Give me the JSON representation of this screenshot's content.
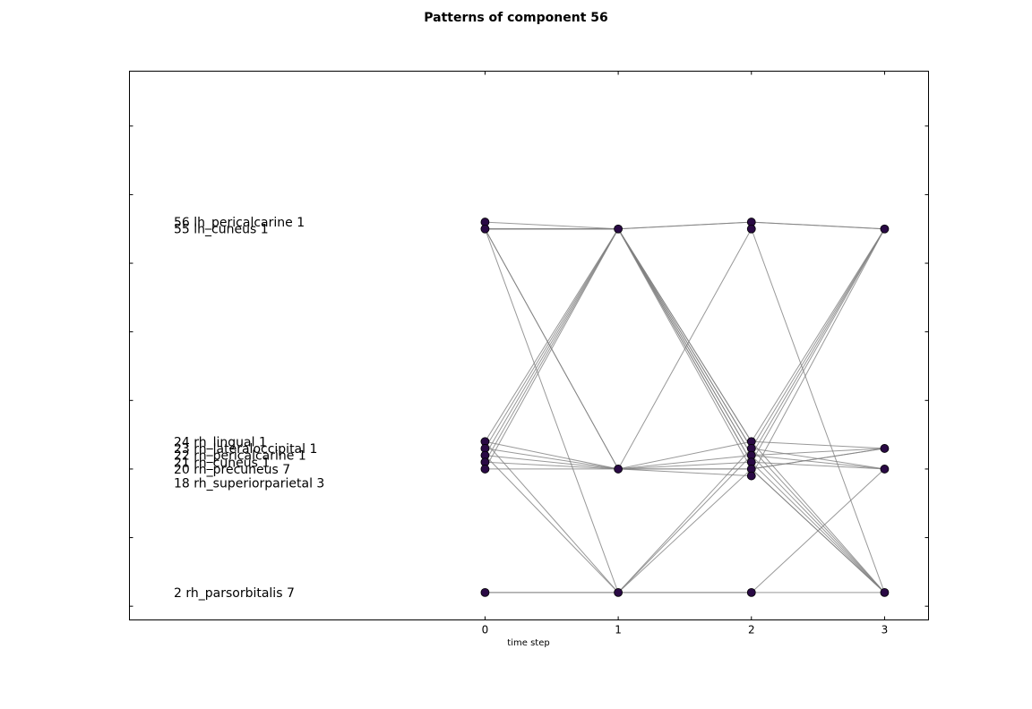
{
  "chart_data": {
    "type": "line",
    "title": "Patterns of component 56",
    "xlabel": "time step",
    "ylabel": "",
    "x_ticks": [
      "0",
      "1",
      "2",
      "3"
    ],
    "xlim": [
      -2.67,
      3.33
    ],
    "ylim": [
      -2,
      78
    ],
    "grid": false,
    "line_color": "#808080",
    "marker_color": "#2a0a45",
    "row_labels": [
      {
        "y": 56,
        "text": "56 lh_pericalcarine 1"
      },
      {
        "y": 55,
        "text": "55 lh_cuneus 1"
      },
      {
        "y": 24,
        "text": "24 rh_lingual 1"
      },
      {
        "y": 23,
        "text": "23 rh_lateraloccipital 1"
      },
      {
        "y": 22,
        "text": "22 rh_pericalcarine 1"
      },
      {
        "y": 21,
        "text": "21 rh_cuneus 1"
      },
      {
        "y": 20,
        "text": "20 rh_precuneus 7"
      },
      {
        "y": 18,
        "text": "18 rh_superiorparietal 3"
      },
      {
        "y": 2,
        "text": "2 rh_parsorbitalis 7"
      }
    ],
    "paths": [
      [
        56,
        55,
        56,
        55
      ],
      [
        55,
        20,
        55,
        2
      ],
      [
        24,
        55,
        24,
        23
      ],
      [
        23,
        55,
        23,
        20
      ],
      [
        22,
        55,
        22,
        23
      ],
      [
        21,
        55,
        21,
        20
      ],
      [
        20,
        55,
        20,
        2
      ],
      [
        24,
        20,
        19,
        55
      ],
      [
        23,
        20,
        24,
        55
      ],
      [
        22,
        20,
        22,
        55
      ],
      [
        21,
        20,
        21,
        55
      ],
      [
        20,
        20,
        20,
        23
      ],
      [
        24,
        2,
        23,
        55
      ],
      [
        22,
        2,
        22,
        20
      ],
      [
        2,
        2,
        2,
        20
      ],
      [
        2,
        2,
        2,
        2
      ],
      [
        55,
        55,
        56,
        55
      ],
      [
        55,
        2,
        20,
        2
      ],
      [
        55,
        55,
        23,
        2
      ],
      [
        55,
        55,
        21,
        2
      ],
      [
        55,
        55,
        22,
        2
      ],
      [
        55,
        55,
        24,
        2
      ],
      [
        55,
        20,
        20,
        23
      ]
    ]
  }
}
